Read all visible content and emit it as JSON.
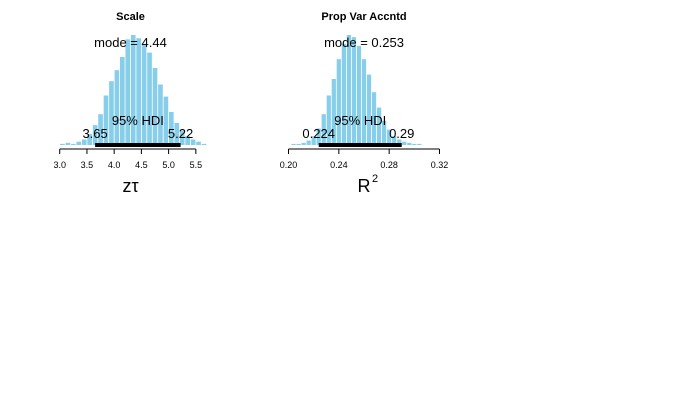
{
  "bar_color": "#87ceeb",
  "hdi_color": "#000000",
  "chart_data": [
    {
      "type": "histogram",
      "title": "Scale",
      "xlabel": "zτ",
      "xlabel_sup": "",
      "mode_label": "mode = 4.44",
      "hdi_label": "95% HDI",
      "hdi_low_label": "3.65",
      "hdi_high_label": "5.22",
      "hdi": [
        3.65,
        5.22
      ],
      "xlim": [
        2.95,
        5.65
      ],
      "ticks": [
        3.0,
        3.5,
        4.0,
        4.5,
        5.0,
        5.5
      ],
      "tick_labels": [
        "3.0",
        "3.5",
        "4.0",
        "4.5",
        "5.0",
        "5.5"
      ],
      "bin_start": 3.0,
      "bin_width": 0.1,
      "counts": [
        1,
        2,
        1,
        3,
        5,
        10,
        18,
        28,
        45,
        58,
        68,
        80,
        96,
        100,
        97,
        92,
        84,
        70,
        55,
        44,
        30,
        20,
        13,
        8,
        5,
        3,
        1
      ]
    },
    {
      "type": "histogram",
      "title": "Prop Var Accntd",
      "xlabel": "R",
      "xlabel_sup": "2",
      "mode_label": "mode = 0.253",
      "hdi_label": "95% HDI",
      "hdi_low_label": "0.224",
      "hdi_high_label": "0.29",
      "hdi": [
        0.224,
        0.29
      ],
      "xlim": [
        0.198,
        0.322
      ],
      "ticks": [
        0.2,
        0.24,
        0.28,
        0.32
      ],
      "tick_labels": [
        "0.20",
        "0.24",
        "0.28",
        "0.32"
      ],
      "bin_start": 0.202,
      "bin_width": 0.004,
      "counts": [
        1,
        1,
        2,
        4,
        8,
        15,
        28,
        45,
        60,
        78,
        92,
        100,
        98,
        90,
        78,
        64,
        48,
        34,
        22,
        14,
        8,
        5,
        3,
        2,
        1,
        1
      ]
    }
  ]
}
